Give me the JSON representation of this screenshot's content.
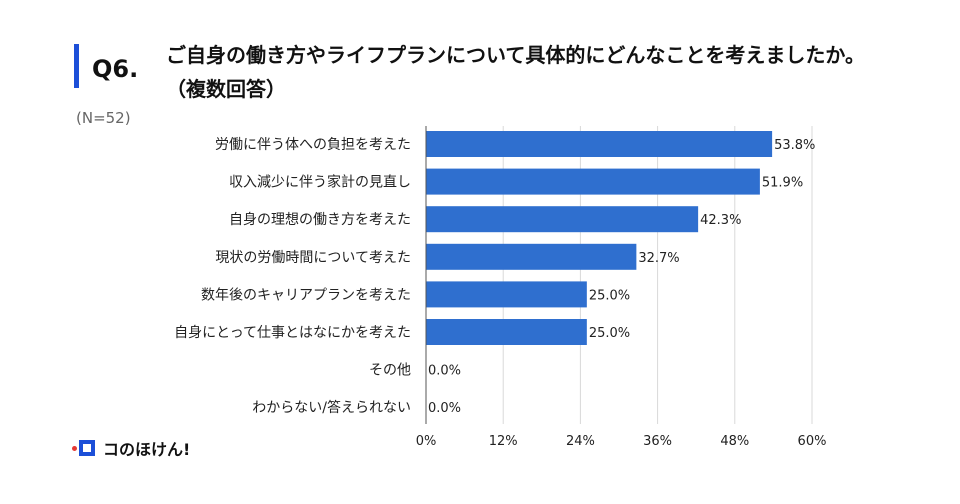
{
  "header": {
    "question_number": "Q6.",
    "question_text": "ご自身の働き方やライフプランについて具体的にどんなことを考えましたか。（複数回答）",
    "sample_size": "(N=52)"
  },
  "brand": {
    "name": "コのほけん!"
  },
  "colors": {
    "bar": "#2f6fcf",
    "accent": "#1c4fd8",
    "grid": "#d9d9d9"
  },
  "chart_data": {
    "type": "bar",
    "orientation": "horizontal",
    "categories": [
      "労働に伴う体への負担を考えた",
      "収入減少に伴う家計の見直し",
      "自身の理想の働き方を考えた",
      "現状の労働時間について考えた",
      "数年後のキャリアプランを考えた",
      "自身にとって仕事とはなにかを考えた",
      "その他",
      "わからない/答えられない"
    ],
    "values": [
      53.8,
      51.9,
      42.3,
      32.7,
      25.0,
      25.0,
      0.0,
      0.0
    ],
    "value_labels": [
      "53.8%",
      "51.9%",
      "42.3%",
      "32.7%",
      "25.0%",
      "25.0%",
      "0.0%",
      "0.0%"
    ],
    "xlim": [
      0,
      60
    ],
    "x_ticks": [
      0,
      12,
      24,
      36,
      48,
      60
    ],
    "x_tick_labels": [
      "0%",
      "12%",
      "24%",
      "36%",
      "48%",
      "60%"
    ],
    "grid": true,
    "legend": "none"
  }
}
